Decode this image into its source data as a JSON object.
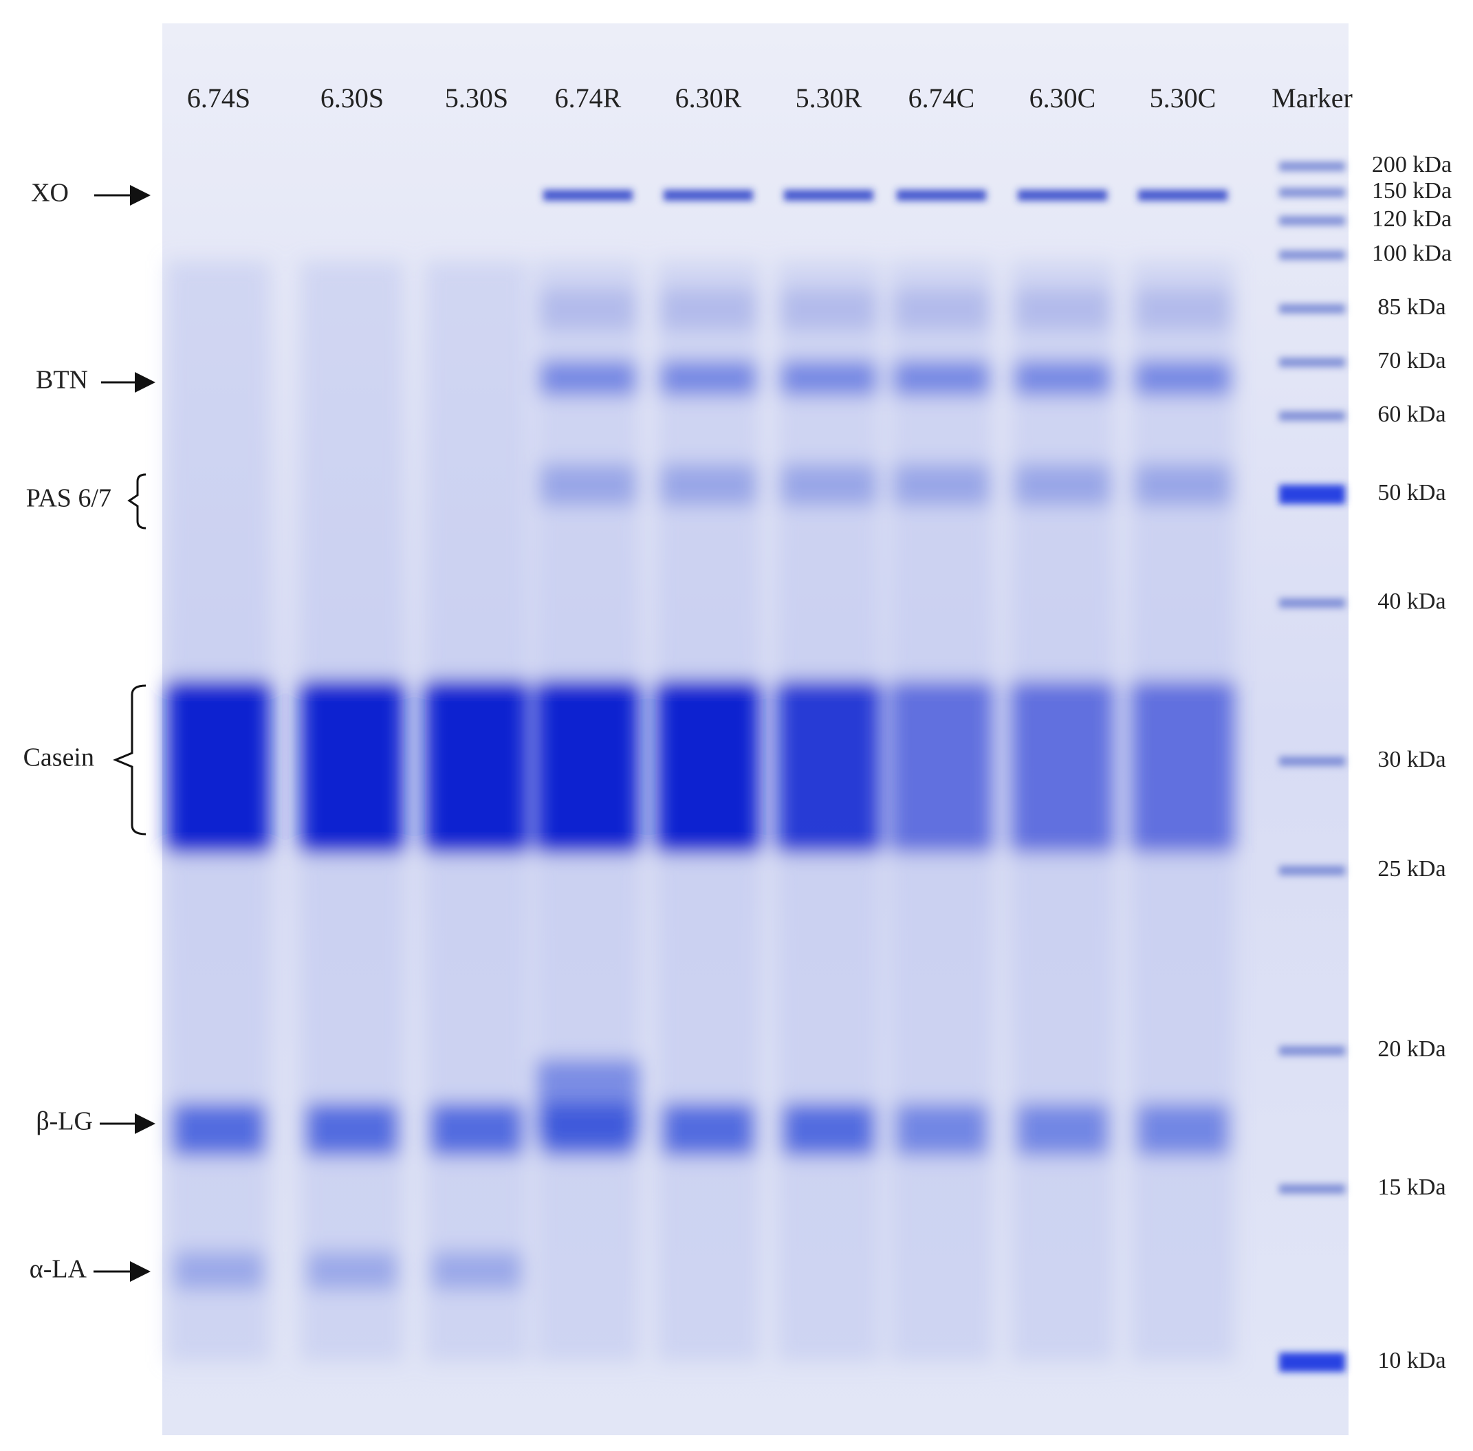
{
  "lanes": [
    "6.74S",
    "6.30S",
    "5.30S",
    "6.74R",
    "6.30R",
    "5.30R",
    "6.74C",
    "6.30C",
    "5.30C",
    "Marker"
  ],
  "markers": [
    "200 kDa",
    "150 kDa",
    "120 kDa",
    "100 kDa",
    "85 kDa",
    "70 kDa",
    "60 kDa",
    "50 kDa",
    "40 kDa",
    "30 kDa",
    "25 kDa",
    "20 kDa",
    "15 kDa",
    "10 kDa"
  ],
  "band_labels": [
    "XO",
    "BTN",
    "PAS 6/7",
    "Casein",
    "β-LG",
    "α-LA"
  ]
}
